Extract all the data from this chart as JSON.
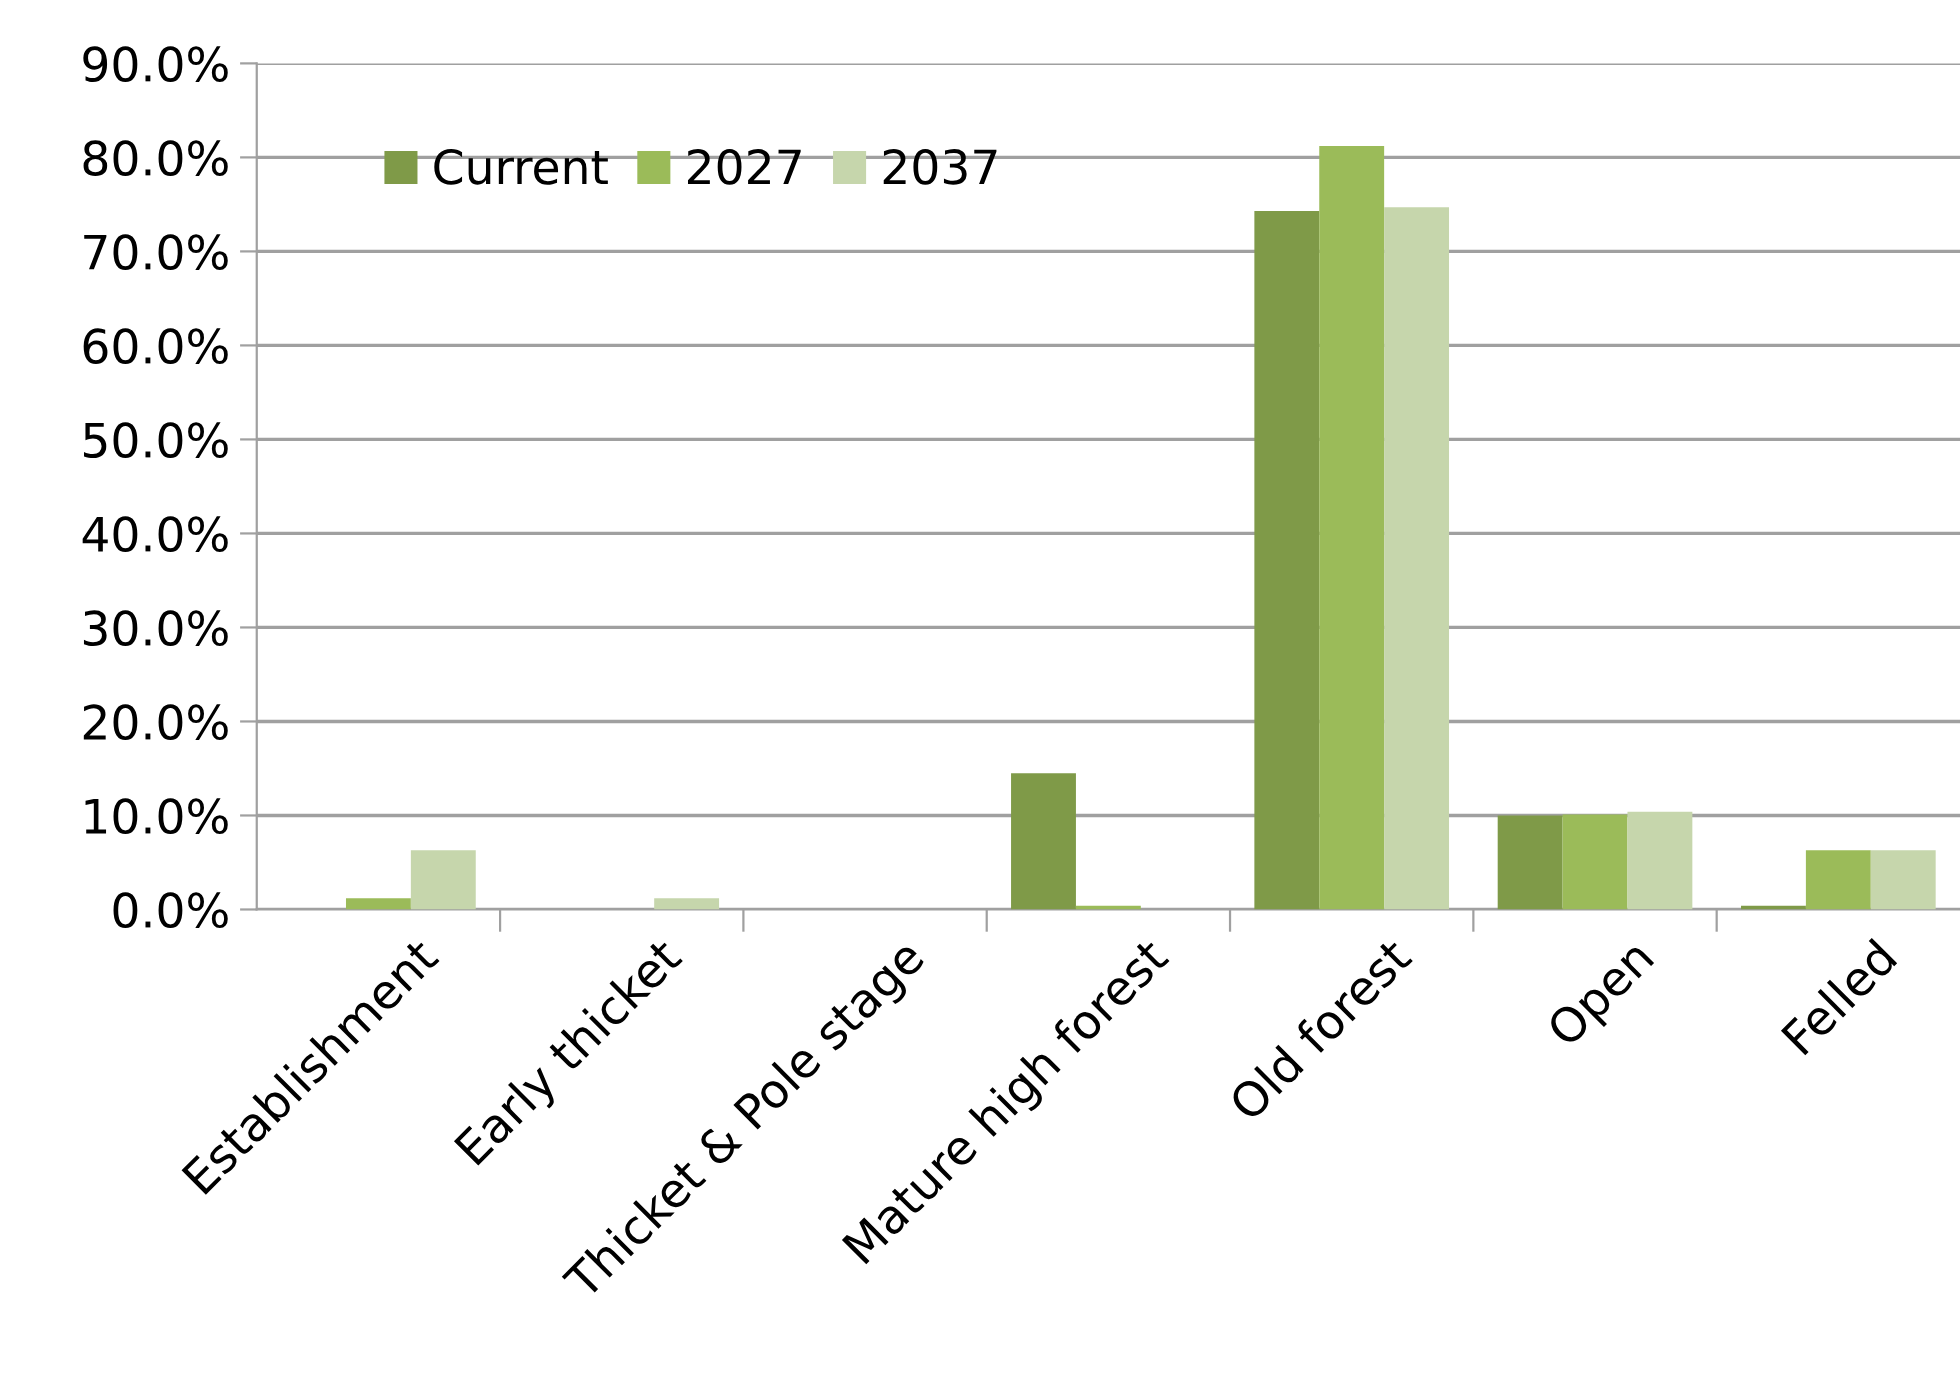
{
  "chart_data": {
    "type": "bar",
    "categories": [
      "Establishment",
      "Early thicket",
      "Thicket & Pole stage",
      "Mature high forest",
      "Old forest",
      "Open",
      "Felled"
    ],
    "series": [
      {
        "name": "Current",
        "color": "#7f9a48",
        "values": [
          0,
          0,
          0,
          14.5,
          74.3,
          10.0,
          0.4
        ]
      },
      {
        "name": "2027",
        "color": "#9bbb59",
        "values": [
          1.2,
          0,
          0,
          0.4,
          81.2,
          10.1,
          6.3
        ]
      },
      {
        "name": "2037",
        "color": "#c6d6ac",
        "values": [
          6.3,
          1.2,
          0,
          0,
          74.7,
          10.4,
          6.3
        ]
      }
    ],
    "ylim": [
      0,
      90
    ],
    "yticks": [
      {
        "value": 0,
        "label": "0.0%"
      },
      {
        "value": 10,
        "label": "10.0%"
      },
      {
        "value": 20,
        "label": "20.0%"
      },
      {
        "value": 30,
        "label": "30.0%"
      },
      {
        "value": 40,
        "label": "40.0%"
      },
      {
        "value": 50,
        "label": "50.0%"
      },
      {
        "value": 60,
        "label": "60.0%"
      },
      {
        "value": 70,
        "label": "70.0%"
      },
      {
        "value": 80,
        "label": "80.0%"
      },
      {
        "value": 90,
        "label": "90.0%"
      }
    ],
    "grid": "y",
    "legend": "top left"
  }
}
